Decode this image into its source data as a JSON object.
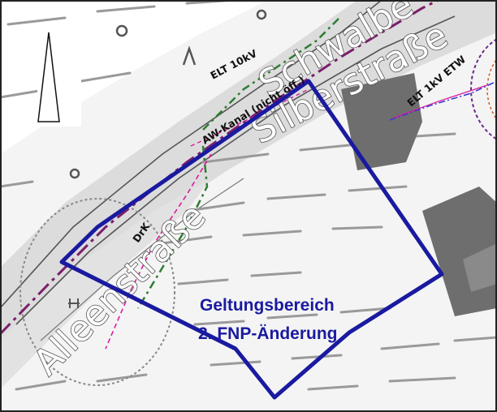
{
  "map": {
    "streets": {
      "silberstrasse": "Silberstraße",
      "alleenstrasse": "Alleenstraße",
      "schwalbe": "Schwalbe"
    },
    "utility_labels": {
      "elt_10kv": "ELT 10kV",
      "aw_kanal": "AW-Kanal (nicht öff.)",
      "elt_1kv_etw": "ELT 1kV ETW",
      "drk": "DrK"
    },
    "area_label": {
      "line1": "Geltungsbereich",
      "line2": "2. FNP-Änderung"
    },
    "colors": {
      "boundary": "#1a1aa0",
      "street_band": "#dcdcdc",
      "buildings": "#6e6e6e",
      "utility_green": "#2e7d32",
      "utility_pink": "#d81b9c",
      "utility_purple": "#7b1f6a"
    },
    "icons": [
      "north-arrow-icon",
      "map-symbol-circle"
    ]
  }
}
